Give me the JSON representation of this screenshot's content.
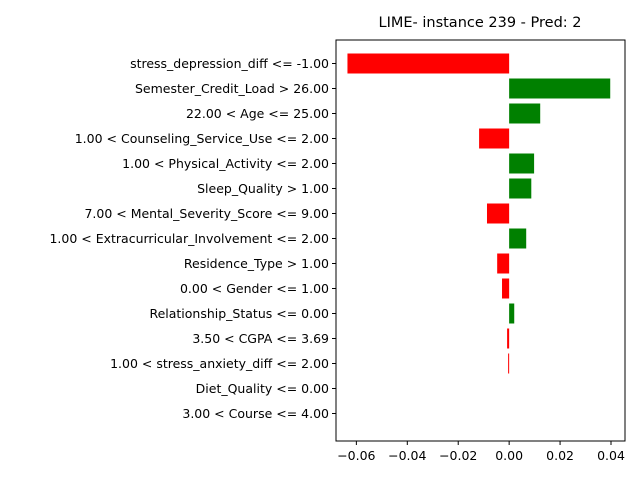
{
  "chart_data": {
    "type": "bar",
    "orientation": "horizontal",
    "title": "LIME- instance 239 - Pred: 2",
    "xlabel": "",
    "ylabel": "",
    "xlim": [
      -0.068,
      0.0455
    ],
    "xticks": [
      -0.06,
      -0.04,
      -0.02,
      0.0,
      0.02,
      0.04
    ],
    "xtick_labels": [
      "−0.06",
      "−0.04",
      "−0.02",
      "0.00",
      "0.02",
      "0.04"
    ],
    "grid": false,
    "colors": {
      "positive": "#008000",
      "negative": "#ff0000"
    },
    "categories": [
      "stress_depression_diff <= -1.00",
      "Semester_Credit_Load > 26.00",
      "22.00 < Age <= 25.00",
      "1.00 < Counseling_Service_Use <= 2.00",
      "1.00 < Physical_Activity <= 2.00",
      "Sleep_Quality > 1.00",
      "7.00 < Mental_Severity_Score <= 9.00",
      "1.00 < Extracurricular_Involvement <= 2.00",
      "Residence_Type > 1.00",
      "0.00 < Gender <= 1.00",
      "Relationship_Status <= 0.00",
      "3.50 < CGPA <= 3.69",
      "1.00 < stress_anxiety_diff <= 2.00",
      "Diet_Quality <= 0.00",
      "3.00 < Course <= 4.00"
    ],
    "values": [
      -0.0635,
      0.0397,
      0.0122,
      -0.0118,
      0.0098,
      0.0087,
      -0.0087,
      0.0067,
      -0.0047,
      -0.0028,
      0.002,
      -0.0008,
      -0.0004,
      0.0,
      0.0
    ]
  }
}
